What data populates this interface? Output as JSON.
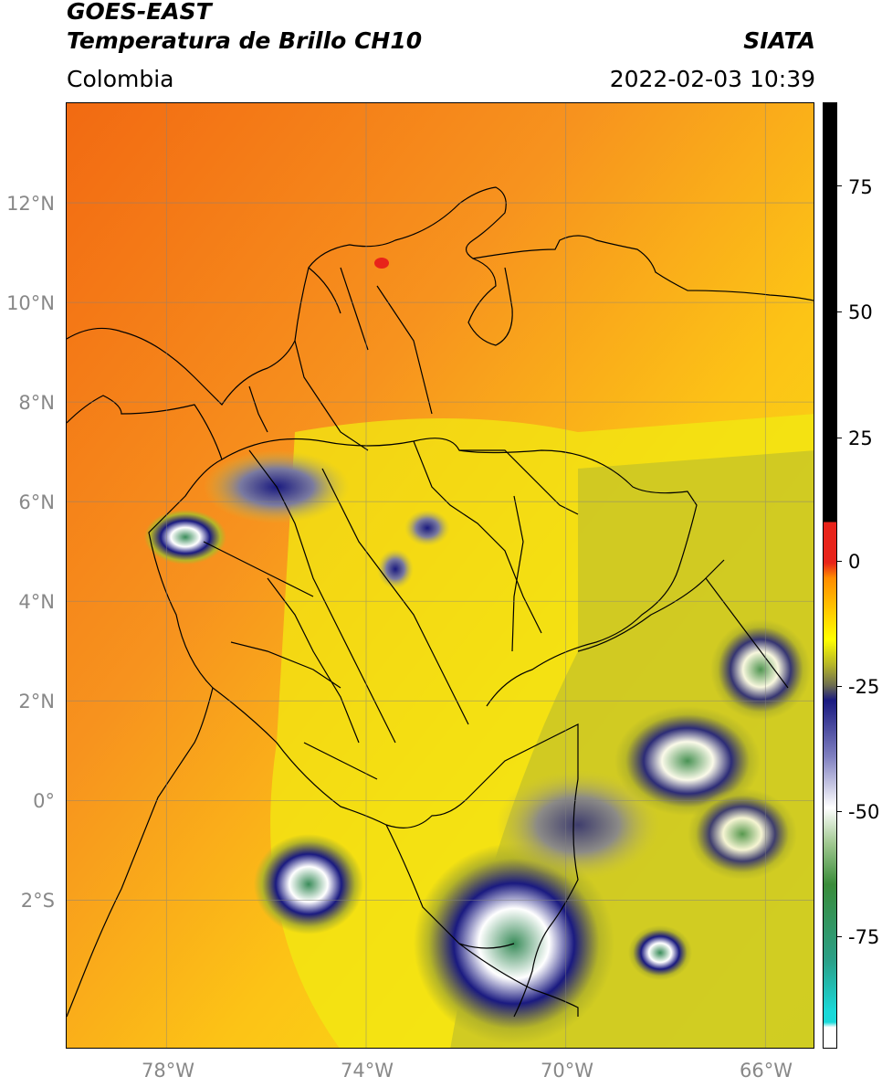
{
  "header": {
    "satellite": "GOES-EAST",
    "product": "Temperatura de Brillo CH10",
    "agency": "SIATA",
    "region": "Colombia",
    "datetime": "2022-02-03 10:39"
  },
  "map": {
    "lat_labels": [
      "12°N",
      "10°N",
      "8°N",
      "6°N",
      "4°N",
      "2°N",
      "0°",
      "2°S"
    ],
    "lon_labels": [
      "78°W",
      "74°W",
      "70°W",
      "66°W"
    ],
    "grid": true,
    "extent": {
      "lon_min": -80,
      "lon_max": -65,
      "lat_min": -5,
      "lat_max": 14
    }
  },
  "colorbar": {
    "tick_labels": [
      "75",
      "50",
      "25",
      "0",
      "-25",
      "-50",
      "-75"
    ],
    "range": [
      -95,
      90
    ],
    "colors": {
      "hot": "#000000",
      "red": "#e8231a",
      "orange": "#ff8c00",
      "yellow": "#ffff00",
      "olive": "#b5b528",
      "navy": "#1a1a80",
      "white": "#ffffff",
      "green": "#3a8c3a",
      "cyan": "#19d9d9"
    }
  }
}
